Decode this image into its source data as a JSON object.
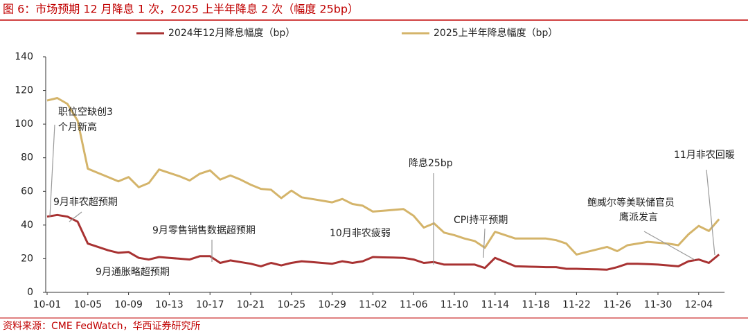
{
  "chart_data": {
    "type": "line",
    "title": "图 6：市场预期 12 月降息 1 次，2025 上半年降息 2 次（幅度 25bp）",
    "source": "资料来源：CME FedWatch，华西证券研究所",
    "categories": [
      "10-01",
      null,
      null,
      null,
      "10-05",
      null,
      null,
      null,
      "10-09",
      null,
      null,
      null,
      "10-13",
      null,
      null,
      null,
      "10-17",
      null,
      null,
      null,
      "10-21",
      null,
      null,
      null,
      "10-25",
      null,
      null,
      null,
      "10-29",
      null,
      null,
      null,
      "11-02",
      null,
      null,
      null,
      "11-06",
      null,
      null,
      null,
      "11-10",
      null,
      null,
      null,
      "11-14",
      null,
      null,
      null,
      "11-18",
      null,
      null,
      null,
      "11-22",
      null,
      null,
      null,
      "11-26",
      null,
      null,
      null,
      "11-30",
      null,
      null,
      null,
      "12-04",
      null,
      null
    ],
    "series": [
      {
        "name": "2024年12月降息幅度（bp）",
        "color": "#a83232",
        "values": [
          45,
          46,
          45,
          42,
          29,
          27,
          25,
          23.5,
          24,
          20.5,
          19.5,
          21,
          20.5,
          20,
          19.5,
          21.5,
          21.5,
          17.5,
          19,
          18,
          17,
          15.5,
          17.5,
          16,
          17.5,
          18.5,
          18,
          17.5,
          17,
          18.5,
          17.5,
          18.5,
          21,
          20.8,
          20.7,
          20.5,
          19.5,
          17.5,
          18,
          16.5,
          16.5,
          16.5,
          16.5,
          14.5,
          20.5,
          18,
          15.5,
          15.3,
          15.2,
          15,
          15,
          14,
          14,
          13.8,
          13.7,
          13.5,
          15,
          17,
          17,
          16.8,
          16.5,
          16,
          15.5,
          18.5,
          19.5,
          17.5,
          22.5
        ]
      },
      {
        "name": "2025上半年降息幅度（bp）",
        "color": "#d4b46a",
        "values": [
          114,
          115.5,
          112,
          102,
          73.5,
          71,
          68.5,
          66,
          68.5,
          62.5,
          65,
          73,
          71,
          69,
          66.5,
          70.5,
          72.5,
          67,
          69.5,
          67,
          64,
          61.5,
          61,
          56,
          60.5,
          56.5,
          55.5,
          54.5,
          53.5,
          55.5,
          52.5,
          51.5,
          48,
          48.5,
          49,
          49.5,
          45.5,
          38.5,
          41,
          35.5,
          34,
          32,
          30.5,
          26.5,
          36,
          34,
          32,
          32,
          32,
          32,
          31,
          29,
          22.5,
          24,
          25.5,
          27,
          24.5,
          28,
          29,
          30,
          29.5,
          29,
          28,
          34.5,
          39.5,
          36.5,
          43.5
        ]
      }
    ],
    "ylim": [
      0,
      140
    ],
    "yticks": [
      0,
      20,
      40,
      60,
      80,
      100,
      120,
      140
    ],
    "annotations": [
      [
        "职位空缺创3",
        "个月新高"
      ],
      [
        "9月非农超预期"
      ],
      [
        "9月零售销售数据超预期"
      ],
      [
        "9月通胀略超预期"
      ],
      [
        "10月非农疲弱"
      ],
      [
        "降息25bp"
      ],
      [
        "CPI持平预期"
      ],
      [
        "鲍威尔等美联储官员",
        "鹰派发言"
      ],
      [
        "11月非农回暖"
      ]
    ]
  }
}
